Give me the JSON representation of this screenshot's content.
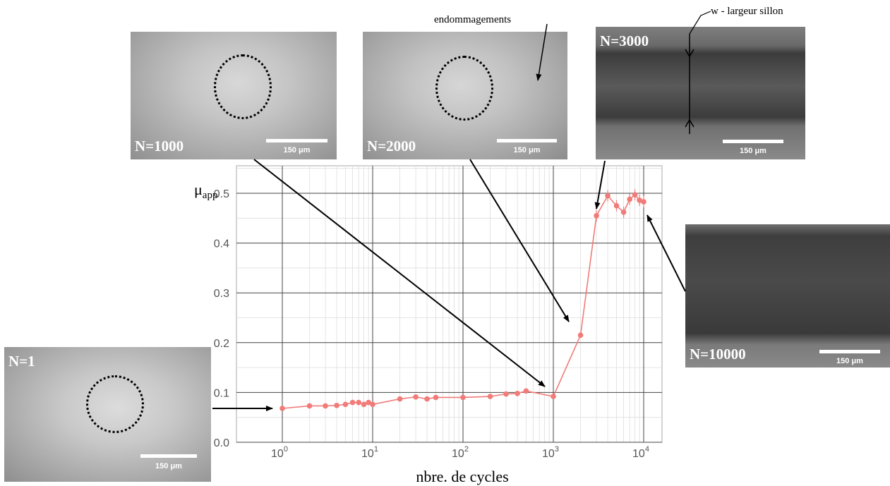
{
  "chart_data": {
    "type": "line",
    "x_scale": "log",
    "xlim": [
      1,
      10000
    ],
    "ylim": [
      0,
      0.55
    ],
    "xlabel": "nbre. de cycles",
    "ylabel_main": "μ",
    "ylabel_sub": "app",
    "grid": true,
    "x_ticks": [
      {
        "base": "10",
        "exp": "0",
        "value": 1
      },
      {
        "base": "10",
        "exp": "1",
        "value": 10
      },
      {
        "base": "10",
        "exp": "2",
        "value": 100
      },
      {
        "base": "10",
        "exp": "3",
        "value": 1000
      },
      {
        "base": "10",
        "exp": "4",
        "value": 10000
      }
    ],
    "y_ticks": [
      "0.0",
      "0.1",
      "0.2",
      "0.3",
      "0.4",
      "0.5"
    ],
    "line_color": "#f07b78",
    "series": [
      {
        "x": [
          1,
          2,
          3,
          4,
          5,
          6,
          7,
          8,
          9,
          10,
          20,
          30,
          40,
          50,
          100,
          200,
          300,
          400,
          500,
          1000,
          2000,
          3000,
          4000,
          5000,
          6000,
          7000,
          8000,
          9000,
          10000
        ],
        "y": [
          0.068,
          0.073,
          0.073,
          0.074,
          0.076,
          0.08,
          0.08,
          0.076,
          0.08,
          0.076,
          0.087,
          0.091,
          0.087,
          0.09,
          0.09,
          0.092,
          0.097,
          0.098,
          0.103,
          0.092,
          0.215,
          0.455,
          0.495,
          0.475,
          0.462,
          0.488,
          0.497,
          0.486,
          0.483
        ]
      }
    ]
  },
  "photos": [
    {
      "label": "N=1",
      "scale": "150 μm"
    },
    {
      "label": "N=1000",
      "scale": "150 μm"
    },
    {
      "label": "N=2000",
      "scale": "150 μm"
    },
    {
      "label": "N=3000",
      "scale": "150 μm"
    },
    {
      "label": "N=10000",
      "scale": "150 μm"
    }
  ],
  "annotations": {
    "damage": "endommagements",
    "width": "w - largeur sillon"
  }
}
